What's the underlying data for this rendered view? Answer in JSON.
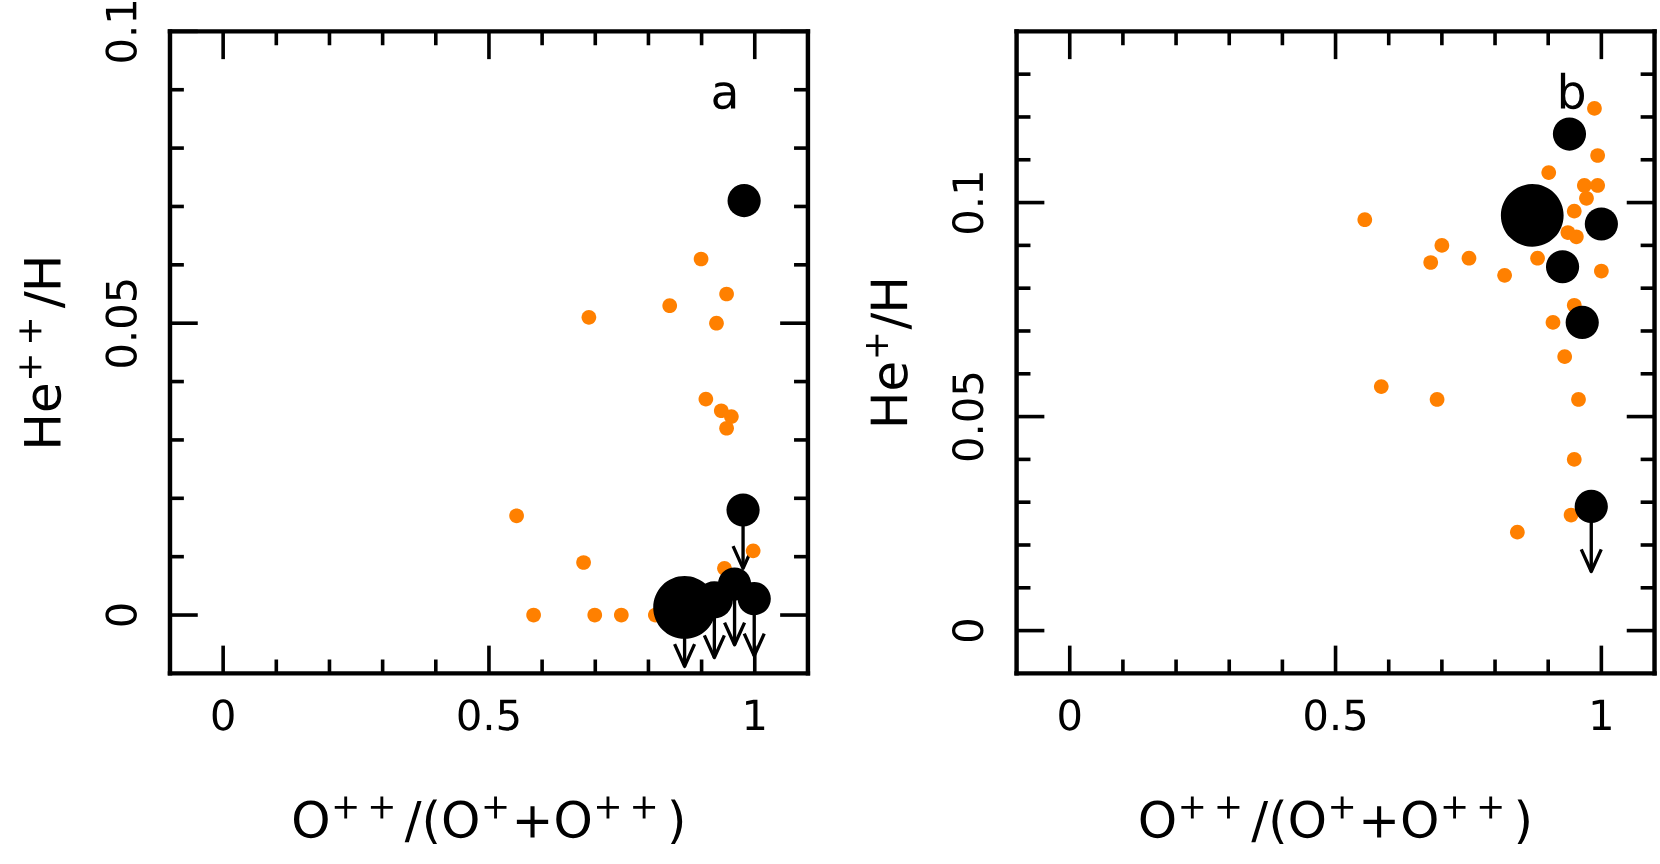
{
  "chart_data": [
    {
      "type": "scatter",
      "xlabel": "O$^{++}$/(O$^{+}$+O$^{++}$)",
      "ylabel": "He$^{++}$/H",
      "annotations": [
        "a"
      ],
      "marker": "circle",
      "xlim": [
        -0.1,
        1.1
      ],
      "ylim": [
        -0.01,
        0.1
      ],
      "xticks": [
        0,
        {
          "value": 0.1,
          "label": null
        },
        {
          "value": 0.2,
          "label": null
        },
        {
          "value": 0.3,
          "label": null
        },
        {
          "value": 0.4,
          "label": null
        },
        0.5,
        {
          "value": 0.6,
          "label": null
        },
        {
          "value": 0.7,
          "label": null
        },
        {
          "value": 0.8,
          "label": null
        },
        {
          "value": 0.9,
          "label": null
        },
        1
      ],
      "yticks": [
        0,
        {
          "value": 0.01,
          "label": null
        },
        {
          "value": 0.02,
          "label": null
        },
        {
          "value": 0.03,
          "label": null
        },
        {
          "value": 0.04,
          "label": null
        },
        0.05,
        {
          "value": 0.06,
          "label": null
        },
        {
          "value": 0.07,
          "label": null
        },
        {
          "value": 0.08,
          "label": null
        },
        {
          "value": 0.09,
          "label": null
        },
        0.1
      ],
      "series": [
        {
          "color": "#ff8000",
          "x": [
            0.899,
            0.84,
            0.947,
            0.688,
            0.928,
            0.908,
            0.937,
            0.956,
            0.947,
            0.552,
            0.678,
            0.997,
            0.943,
            0.584,
            0.699,
            0.749,
            0.813
          ],
          "values": [
            0.061,
            0.053,
            0.055,
            0.051,
            0.05,
            0.037,
            0.035,
            0.034,
            0.032,
            0.017,
            0.009,
            0.011,
            0.008,
            0,
            0,
            0,
            0
          ]
        },
        {
          "type": "bubble",
          "color": "#000000",
          "x": [
            0.98,
            0.978,
            0.868,
            0.924,
            0.962,
            0.999
          ],
          "values": [
            0.071,
            0.018,
            0.0013,
            0.0026,
            0.0053,
            0.0028
          ],
          "sizes": [
            0.28,
            0.28,
            1,
            0.35,
            0.28,
            0.28
          ],
          "errors": [
            null,
            [
              0.008,
              0.018
            ],
            [
              -0.0088,
              0.0013
            ],
            [
              -0.0073,
              0.0026
            ],
            [
              -0.0051,
              0.0053
            ],
            [
              -0.007,
              0.0028
            ]
          ]
        }
      ]
    },
    {
      "type": "scatter",
      "xlabel": "O$^{++}$/(O$^{+}$+O$^{++}$)",
      "ylabel": "He$^{+}$/H",
      "annotations": [
        "b"
      ],
      "marker": "circle",
      "xlim": [
        -0.1,
        1.1
      ],
      "ylim": [
        -0.01,
        0.14
      ],
      "xticks": [
        0,
        {
          "value": 0.1,
          "label": null
        },
        {
          "value": 0.2,
          "label": null
        },
        {
          "value": 0.3,
          "label": null
        },
        {
          "value": 0.4,
          "label": null
        },
        0.5,
        {
          "value": 0.6,
          "label": null
        },
        {
          "value": 0.7,
          "label": null
        },
        {
          "value": 0.8,
          "label": null
        },
        {
          "value": 0.9,
          "label": null
        },
        1
      ],
      "yticks": [
        0,
        {
          "value": 0.01,
          "label": null
        },
        {
          "value": 0.02,
          "label": null
        },
        {
          "value": 0.03,
          "label": null
        },
        {
          "value": 0.04,
          "label": null
        },
        0.05,
        {
          "value": 0.06,
          "label": null
        },
        {
          "value": 0.07,
          "label": null
        },
        {
          "value": 0.08,
          "label": null
        },
        {
          "value": 0.09,
          "label": null
        },
        0.1,
        {
          "value": 0.11,
          "label": null
        },
        {
          "value": 0.12,
          "label": null
        },
        {
          "value": 0.13,
          "label": null
        }
      ],
      "series": [
        {
          "color": "#ff8000",
          "x": [
            0.555,
            0.987,
            0.993,
            0.901,
            0.968,
            0.993,
            0.972,
            0.949,
            0.937,
            0.953,
            0.7,
            0.679,
            0.751,
            0.88,
            0.818,
            1.0,
            0.949,
            0.909,
            0.931,
            0.586,
            0.691,
            0.957,
            0.949,
            0.943,
            0.842
          ],
          "values": [
            0.096,
            0.122,
            0.111,
            0.107,
            0.104,
            0.104,
            0.101,
            0.098,
            0.093,
            0.092,
            0.09,
            0.086,
            0.087,
            0.087,
            0.083,
            0.084,
            0.076,
            0.072,
            0.064,
            0.057,
            0.054,
            0.054,
            0.04,
            0.027,
            0.023
          ]
        },
        {
          "type": "bubble",
          "color": "#000000",
          "x": [
            0.87,
            1.0,
            0.927,
            0.964,
            0.981,
            0.94
          ],
          "values": [
            0.097,
            0.095,
            0.085,
            0.072,
            0.029,
            0.116
          ],
          "sizes": [
            1,
            0.28,
            0.28,
            0.28,
            0.28,
            0.28
          ],
          "errors": [
            null,
            null,
            null,
            null,
            [
              0.0138,
              0.029
            ],
            null
          ]
        }
      ]
    }
  ]
}
